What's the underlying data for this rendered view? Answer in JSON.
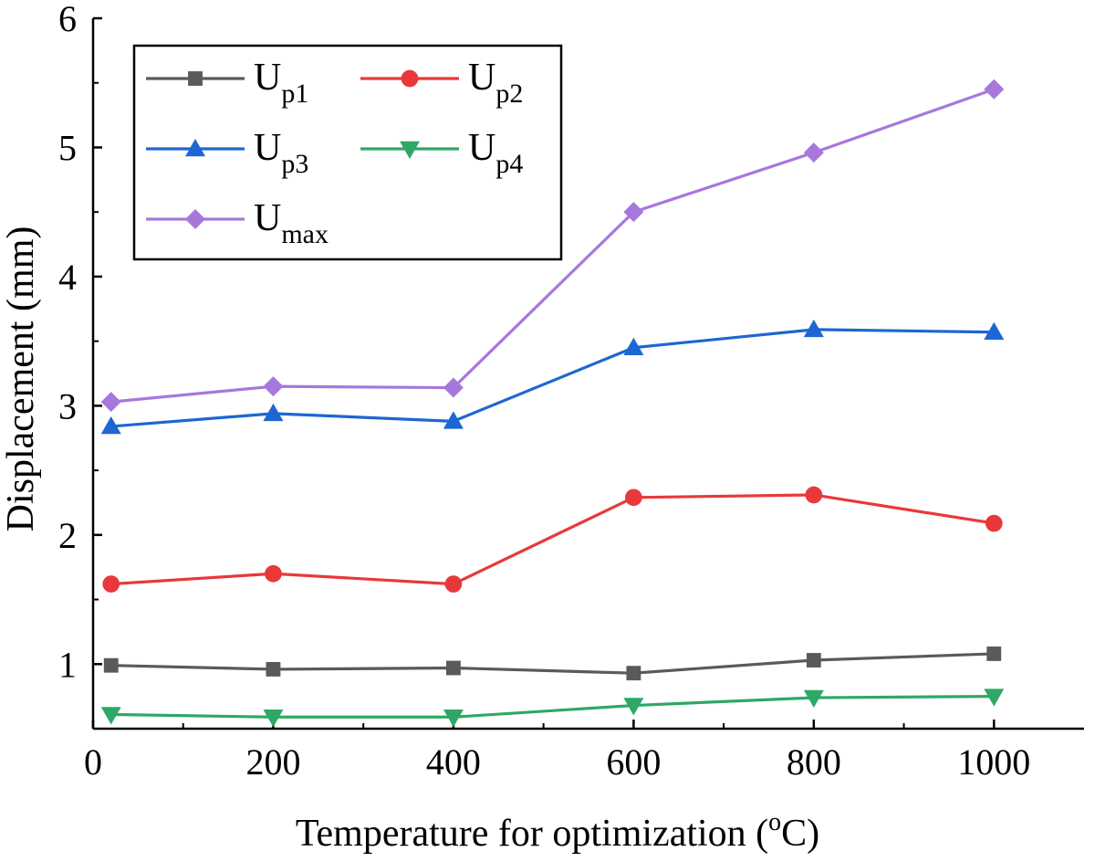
{
  "chart_data": {
    "type": "line",
    "xlabel": "Temperature for  optimization (",
    "xlabel_super": "o",
    "xlabel_unit": "C)",
    "ylabel": "Displacement (mm)",
    "xlim": [
      0,
      1100
    ],
    "ylim": [
      0.5,
      6
    ],
    "x_ticks": [
      0,
      200,
      400,
      600,
      800,
      1000
    ],
    "y_ticks": [
      1,
      2,
      3,
      4,
      5,
      6
    ],
    "grid": false,
    "legend_position": "top-left",
    "x": [
      20,
      200,
      400,
      600,
      800,
      1000
    ],
    "series": [
      {
        "name": "U",
        "sub": "p1",
        "color": "#5a5a5a",
        "marker": "square",
        "values": [
          0.99,
          0.96,
          0.97,
          0.93,
          1.03,
          1.08
        ]
      },
      {
        "name": "U",
        "sub": "p2",
        "color": "#e8393a",
        "marker": "circle",
        "values": [
          1.62,
          1.7,
          1.62,
          2.29,
          2.31,
          2.09
        ]
      },
      {
        "name": "U",
        "sub": "p3",
        "color": "#1c67d2",
        "marker": "triangle-up",
        "values": [
          2.84,
          2.94,
          2.88,
          3.45,
          3.59,
          3.57
        ]
      },
      {
        "name": "U",
        "sub": "p4",
        "color": "#2ea864",
        "marker": "triangle-down",
        "values": [
          0.61,
          0.59,
          0.59,
          0.68,
          0.74,
          0.75
        ]
      },
      {
        "name": "U",
        "sub": "max",
        "color": "#a678dc",
        "marker": "diamond",
        "values": [
          3.03,
          3.15,
          3.14,
          4.5,
          4.96,
          5.45
        ]
      }
    ]
  }
}
